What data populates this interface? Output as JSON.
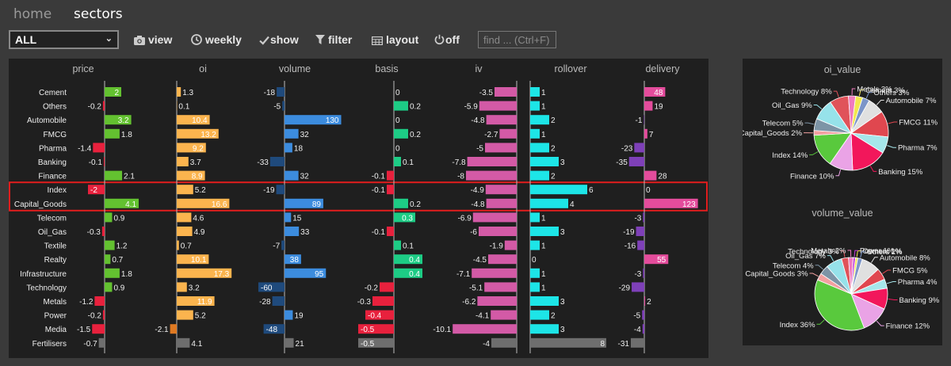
{
  "nav": {
    "home": "home",
    "sectors": "sectors"
  },
  "toolbar": {
    "select_value": "ALL",
    "view": "view",
    "weekly": "weekly",
    "show": "show",
    "filter": "filter",
    "layout": "layout",
    "off": "off",
    "search_placeholder": "find ... (Ctrl+F)"
  },
  "colors": {
    "price": "#63c130",
    "oi": "#fbb44e",
    "volume": "#3c8cde",
    "basis": "#1dcc85",
    "iv": "#d35aa6",
    "rollover": "#1de5e7",
    "delivery": "#e44c9c",
    "negative": "#e8213d",
    "neg_oi": "#e07a22",
    "neg_volume": "#1f4a7c",
    "neg_delivery": "#7e40b8",
    "fertilisers": "#6e6e6e",
    "highlight": "#e11d1d"
  },
  "chart_data": [
    {
      "type": "bar",
      "orientation": "horizontal",
      "categories": [
        "Cement",
        "Others",
        "Automobile",
        "FMCG",
        "Pharma",
        "Banking",
        "Finance",
        "Index",
        "Capital_Goods",
        "Telecom",
        "Oil_Gas",
        "Textile",
        "Realty",
        "Infrastructure",
        "Technology",
        "Metals",
        "Power",
        "Media",
        "Fertilisers"
      ],
      "highlighted": [
        "Index",
        "Capital_Goods"
      ],
      "series": [
        {
          "name": "price",
          "values": [
            2,
            -0.2,
            3.2,
            1.8,
            -1.4,
            -0.1,
            2.1,
            -2,
            4.1,
            0.9,
            -0.3,
            1.2,
            0.7,
            1.8,
            0.9,
            -1.2,
            -0.2,
            -1.5,
            -0.7
          ],
          "labels": [
            "2",
            "-0.2",
            "3.2",
            "1.8",
            "-1.4",
            "-0.1",
            "2.1",
            "-2",
            "4.1",
            "0.9",
            "-0.3",
            "1.2",
            "0.7",
            "1.8",
            "0.9",
            "-1.2",
            "-0.2",
            "-1.5",
            "-0.7"
          ]
        },
        {
          "name": "oi",
          "values": [
            1.3,
            0.1,
            10.4,
            13.2,
            9.2,
            3.7,
            8.9,
            5.2,
            16.6,
            4.6,
            4.9,
            0.7,
            10.1,
            17.3,
            3.2,
            11.9,
            5.2,
            -2.1,
            4.1
          ],
          "labels": [
            "1.3",
            "0.1",
            "10.4",
            "13.2",
            "9.2",
            "3.7",
            "8.9",
            "5.2",
            "16.6",
            "4.6",
            "4.9",
            "0.7",
            "10.1",
            "17.3",
            "3.2",
            "11.9",
            "5.2",
            "-2.1",
            "4.1"
          ]
        },
        {
          "name": "volume",
          "values": [
            -18,
            -5,
            130,
            32,
            18,
            -33,
            32,
            -19,
            89,
            15,
            33,
            -7,
            38,
            95,
            -60,
            -28,
            19,
            -48,
            21
          ],
          "labels": [
            "-18",
            "-5",
            "130",
            "32",
            "18",
            "-33",
            "32",
            "-19",
            "89",
            "15",
            "33",
            "-7",
            "38",
            "95",
            "-60",
            "-28",
            "19",
            "-48",
            "21"
          ]
        },
        {
          "name": "basis",
          "values": [
            0,
            0.2,
            0,
            0.2,
            0,
            0.1,
            -0.1,
            -0.1,
            0.2,
            0.3,
            -0.1,
            0.1,
            0.4,
            0.4,
            -0.2,
            -0.3,
            -0.4,
            -0.5,
            -0.5
          ],
          "labels": [
            "0",
            "0.2",
            "0",
            "0.2",
            "0",
            "0.1",
            "-0.1",
            "-0.1",
            "0.2",
            "0.3",
            "-0.1",
            "0.1",
            "0.4",
            "0.4",
            "-0.2",
            "-0.3",
            "-0.4",
            "-0.5",
            "-0.5"
          ]
        },
        {
          "name": "iv",
          "values": [
            -3.5,
            -5.9,
            -4.8,
            -2.7,
            -5,
            -7.8,
            -8,
            -4.9,
            -4.8,
            -6.9,
            -6,
            -1.9,
            -4.5,
            -7.1,
            -5.1,
            -6.2,
            -4.1,
            -10.1,
            -4
          ],
          "labels": [
            "-3.5",
            "-5.9",
            "-4.8",
            "-2.7",
            "-5",
            "-7.8",
            "-8",
            "-4.9",
            "-4.8",
            "-6.9",
            "-6",
            "-1.9",
            "-4.5",
            "-7.1",
            "-5.1",
            "-6.2",
            "-4.1",
            "-10.1",
            "-4"
          ]
        },
        {
          "name": "rollover",
          "values": [
            1,
            1,
            2,
            1,
            2,
            3,
            2,
            6,
            4,
            1,
            3,
            1,
            0,
            1,
            1,
            3,
            2,
            3,
            8
          ],
          "labels": [
            "1",
            "1",
            "2",
            "1",
            "2",
            "3",
            "2",
            "6",
            "4",
            "1",
            "3",
            "1",
            "0",
            "1",
            "1",
            "3",
            "2",
            "3",
            "8"
          ]
        },
        {
          "name": "delivery",
          "values": [
            48,
            19,
            -1,
            7,
            -23,
            -35,
            28,
            0,
            123,
            -3,
            -19,
            -16,
            55,
            -3,
            -29,
            2,
            -5,
            -4,
            -31
          ],
          "labels": [
            "48",
            "19",
            "-1",
            "7",
            "-23",
            "-35",
            "28",
            "0",
            "123",
            "-3",
            "-19",
            "-16",
            "55",
            "-3",
            "-29",
            "2",
            "-5",
            "-4",
            "-31"
          ]
        }
      ]
    },
    {
      "type": "pie",
      "title": "oi_value",
      "slices": [
        {
          "label": "Cement 3%",
          "value": 3,
          "color": "#f2e84d"
        },
        {
          "label": "Others 3%",
          "value": 3,
          "color": "#7b95c8"
        },
        {
          "label": "Automobile 7%",
          "value": 7,
          "color": "#e0e0e0"
        },
        {
          "label": "FMCG 11%",
          "value": 11,
          "color": "#e0474f"
        },
        {
          "label": "Pharma 7%",
          "value": 7,
          "color": "#a6e6ea"
        },
        {
          "label": "Banking 15%",
          "value": 15,
          "color": "#f2175b"
        },
        {
          "label": "Finance 10%",
          "value": 10,
          "color": "#eaa3e6"
        },
        {
          "label": "Index 14%",
          "value": 14,
          "color": "#59c93d"
        },
        {
          "label": "Capital_Goods 2%",
          "value": 2,
          "color": "#f2a0a0"
        },
        {
          "label": "Telecom 5%",
          "value": 5,
          "color": "#7d94a6"
        },
        {
          "label": "Oil_Gas 9%",
          "value": 9,
          "color": "#96e2ea"
        },
        {
          "label": "Technology 8%",
          "value": 8,
          "color": "#e0535a"
        },
        {
          "label": "Metals 3%",
          "value": 3,
          "color": "#f07bbe"
        }
      ]
    },
    {
      "type": "pie",
      "title": "volume_value",
      "slices": [
        {
          "label": "Cement 1%",
          "value": 1,
          "color": "#f2e84d"
        },
        {
          "label": "Others 2%",
          "value": 2,
          "color": "#7b95c8"
        },
        {
          "label": "Automobile 8%",
          "value": 8,
          "color": "#e0e0e0"
        },
        {
          "label": "FMCG 5%",
          "value": 5,
          "color": "#e0474f"
        },
        {
          "label": "Pharma 4%",
          "value": 4,
          "color": "#a6e6ea"
        },
        {
          "label": "Banking 9%",
          "value": 9,
          "color": "#f2175b"
        },
        {
          "label": "Finance 12%",
          "value": 12,
          "color": "#eaa3e6"
        },
        {
          "label": "Index 36%",
          "value": 36,
          "color": "#59c93d"
        },
        {
          "label": "Capital_Goods 3%",
          "value": 3,
          "color": "#f2a0a0"
        },
        {
          "label": "Telecom 4%",
          "value": 4,
          "color": "#7d94a6"
        },
        {
          "label": "Oil_Gas 7%",
          "value": 7,
          "color": "#96e2ea"
        },
        {
          "label": "Technology 3%",
          "value": 3,
          "color": "#e0535a"
        },
        {
          "label": "Metals 2%",
          "value": 2,
          "color": "#f07bbe"
        },
        {
          "label": "Power 1%",
          "value": 1,
          "color": "#c03ad8"
        }
      ]
    }
  ]
}
